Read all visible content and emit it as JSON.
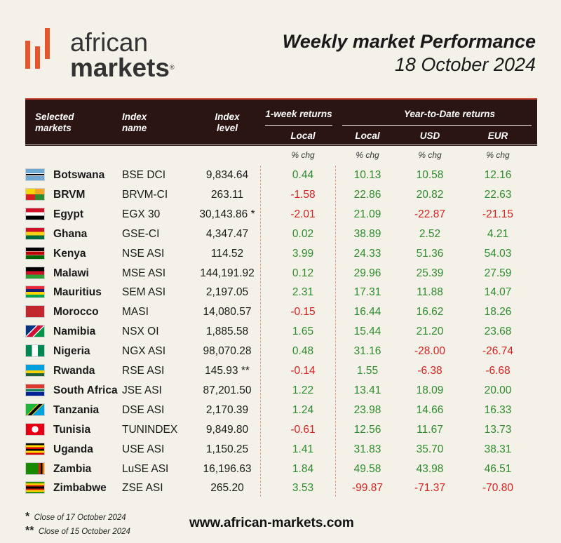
{
  "logo": {
    "line1": "african",
    "line2": "markets",
    "reg": "®"
  },
  "title": {
    "line1": "Weekly market Performance",
    "line2": "18 October 2024"
  },
  "headers": {
    "market": "Selected markets",
    "index_name": "Index name",
    "index_level": "Index level",
    "week": "1-week returns",
    "ytd": "Year-to-Date returns",
    "week_local": "Local",
    "ytd_local": "Local",
    "ytd_usd": "USD",
    "ytd_eur": "EUR",
    "chg1": "% chg",
    "chg2": "% chg",
    "chg3": "% chg",
    "chg4": "% chg"
  },
  "rows": [
    {
      "country": "Botswana",
      "index": "BSE DCI",
      "level": "9,834.64",
      "w": "0.44",
      "l": "10.13",
      "u": "10.58",
      "e": "12.16"
    },
    {
      "country": "BRVM",
      "index": "BRVM-CI",
      "level": "263.11",
      "w": "-1.58",
      "l": "22.86",
      "u": "20.82",
      "e": "22.63"
    },
    {
      "country": "Egypt",
      "index": "EGX 30",
      "level": "30,143.86 *",
      "w": "-2.01",
      "l": "21.09",
      "u": "-22.87",
      "e": "-21.15"
    },
    {
      "country": "Ghana",
      "index": "GSE-CI",
      "level": "4,347.47",
      "w": "0.02",
      "l": "38.89",
      "u": "2.52",
      "e": "4.21"
    },
    {
      "country": "Kenya",
      "index": "NSE ASI",
      "level": "114.52",
      "w": "3.99",
      "l": "24.33",
      "u": "51.36",
      "e": "54.03"
    },
    {
      "country": "Malawi",
      "index": "MSE ASI",
      "level": "144,191.92",
      "w": "0.12",
      "l": "29.96",
      "u": "25.39",
      "e": "27.59"
    },
    {
      "country": "Mauritius",
      "index": "SEM ASI",
      "level": "2,197.05",
      "w": "2.31",
      "l": "17.31",
      "u": "11.88",
      "e": "14.07"
    },
    {
      "country": "Morocco",
      "index": "MASI",
      "level": "14,080.57",
      "w": "-0.15",
      "l": "16.44",
      "u": "16.62",
      "e": "18.26"
    },
    {
      "country": "Namibia",
      "index": "NSX OI",
      "level": "1,885.58",
      "w": "1.65",
      "l": "15.44",
      "u": "21.20",
      "e": "23.68"
    },
    {
      "country": "Nigeria",
      "index": "NGX ASI",
      "level": "98,070.28",
      "w": "0.48",
      "l": "31.16",
      "u": "-28.00",
      "e": "-26.74"
    },
    {
      "country": "Rwanda",
      "index": "RSE ASI",
      "level": "145.93 **",
      "w": "-0.14",
      "l": "1.55",
      "u": "-6.38",
      "e": "-6.68"
    },
    {
      "country": "South Africa",
      "index": "JSE ASI",
      "level": "87,201.50",
      "w": "1.22",
      "l": "13.41",
      "u": "18.09",
      "e": "20.00"
    },
    {
      "country": "Tanzania",
      "index": "DSE ASI",
      "level": "2,170.39",
      "w": "1.24",
      "l": "23.98",
      "u": "14.66",
      "e": "16.33"
    },
    {
      "country": "Tunisia",
      "index": "TUNINDEX",
      "level": "9,849.80",
      "w": "-0.61",
      "l": "12.56",
      "u": "11.67",
      "e": "13.73"
    },
    {
      "country": "Uganda",
      "index": "USE ASI",
      "level": "1,150.25",
      "w": "1.41",
      "l": "31.83",
      "u": "35.70",
      "e": "38.31"
    },
    {
      "country": "Zambia",
      "index": "LuSE ASI",
      "level": "16,196.63",
      "w": "1.84",
      "l": "49.58",
      "u": "43.98",
      "e": "46.51"
    },
    {
      "country": "Zimbabwe",
      "index": "ZSE ASI",
      "level": "265.20",
      "w": "3.53",
      "l": "-99.87",
      "u": "-71.37",
      "e": "-70.80"
    }
  ],
  "footnotes": {
    "mark1": "*",
    "note1": "Close of 17 October 2024",
    "mark2": "**",
    "note2": "Close of 15 October 2024"
  },
  "url": "www.african-markets.com",
  "colors": {
    "accent": "#e4572e",
    "header_bg": "#2a1512",
    "positive": "#2e8b2e",
    "negative": "#d62020",
    "background": "#f4f1e8"
  }
}
